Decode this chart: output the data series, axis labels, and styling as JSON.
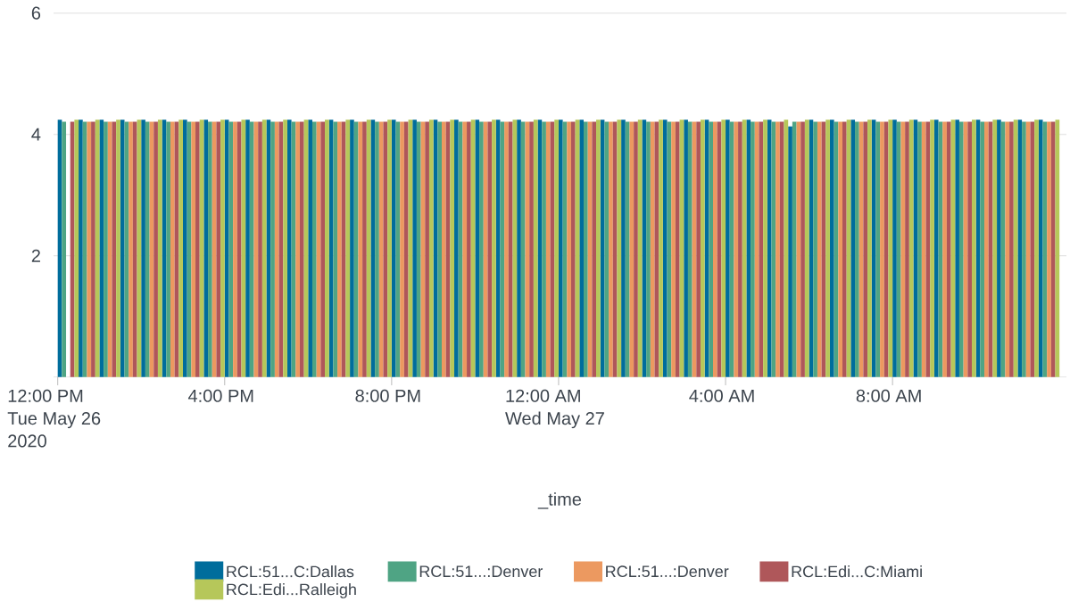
{
  "chart_data": {
    "type": "bar",
    "xlabel": "_time",
    "x": [
      "2020-05-26T12:15",
      "2020-05-26T12:45",
      "2020-05-26T13:15",
      "2020-05-26T13:45",
      "2020-05-26T14:15",
      "2020-05-26T14:45",
      "2020-05-26T15:15",
      "2020-05-26T15:45",
      "2020-05-26T16:15",
      "2020-05-26T16:45",
      "2020-05-26T17:15",
      "2020-05-26T17:45",
      "2020-05-26T18:15",
      "2020-05-26T18:45",
      "2020-05-26T19:15",
      "2020-05-26T19:45",
      "2020-05-26T20:15",
      "2020-05-26T20:45",
      "2020-05-26T21:15",
      "2020-05-26T21:45",
      "2020-05-26T22:15",
      "2020-05-26T22:45",
      "2020-05-26T23:15",
      "2020-05-26T23:45",
      "2020-05-27T00:15",
      "2020-05-27T00:45",
      "2020-05-27T01:15",
      "2020-05-27T01:45",
      "2020-05-27T02:15",
      "2020-05-27T02:45",
      "2020-05-27T03:15",
      "2020-05-27T03:45",
      "2020-05-27T04:15",
      "2020-05-27T04:45",
      "2020-05-27T05:15",
      "2020-05-27T05:45",
      "2020-05-27T06:15",
      "2020-05-27T06:45",
      "2020-05-27T07:15",
      "2020-05-27T07:45",
      "2020-05-27T08:15",
      "2020-05-27T08:45",
      "2020-05-27T09:15",
      "2020-05-27T09:45",
      "2020-05-27T10:15",
      "2020-05-27T10:45",
      "2020-05-27T11:15",
      "2020-05-27T11:45"
    ],
    "series": [
      {
        "name": "RCL:51...C:Dallas",
        "color": "#006d9c",
        "values": [
          4.24,
          4.24,
          4.24,
          4.24,
          4.24,
          4.24,
          4.24,
          4.24,
          4.24,
          4.24,
          4.24,
          4.24,
          4.24,
          4.24,
          4.24,
          4.24,
          4.24,
          4.24,
          4.24,
          4.24,
          4.24,
          4.24,
          4.24,
          4.24,
          4.24,
          4.24,
          4.24,
          4.24,
          4.24,
          4.24,
          4.24,
          4.24,
          4.24,
          4.24,
          4.24,
          4.13,
          4.24,
          4.24,
          4.24,
          4.24,
          4.24,
          4.24,
          4.24,
          4.24,
          4.24,
          4.24,
          4.24,
          4.24
        ]
      },
      {
        "name": "RCL:51...:Denver",
        "color": "#4fa484",
        "values": [
          4.21,
          4.21,
          4.21,
          4.21,
          4.21,
          4.21,
          4.21,
          4.21,
          4.21,
          4.21,
          4.21,
          4.21,
          4.21,
          4.21,
          4.21,
          4.21,
          4.21,
          4.21,
          4.21,
          4.21,
          4.21,
          4.21,
          4.21,
          4.21,
          4.21,
          4.21,
          4.21,
          4.21,
          4.21,
          4.21,
          4.21,
          4.21,
          4.21,
          4.21,
          4.21,
          4.21,
          4.21,
          4.21,
          4.21,
          4.21,
          4.21,
          4.21,
          4.21,
          4.21,
          4.21,
          4.21,
          4.21,
          4.21
        ]
      },
      {
        "name": "RCL:51...:Denver",
        "color": "#ec9960",
        "values": [
          null,
          4.21,
          4.21,
          4.21,
          4.21,
          4.21,
          4.21,
          4.21,
          4.21,
          4.21,
          4.21,
          4.21,
          4.21,
          4.21,
          4.21,
          4.21,
          4.21,
          4.21,
          4.21,
          4.21,
          4.21,
          4.21,
          4.21,
          4.21,
          4.21,
          4.21,
          4.21,
          4.21,
          4.21,
          4.21,
          4.21,
          4.21,
          4.21,
          4.21,
          4.21,
          4.21,
          4.21,
          4.21,
          4.21,
          4.21,
          4.21,
          4.21,
          4.21,
          4.21,
          4.21,
          4.21,
          4.21,
          4.21
        ]
      },
      {
        "name": "RCL:Edi...C:Miami",
        "color": "#af575a",
        "values": [
          4.21,
          4.21,
          4.21,
          4.21,
          4.21,
          4.21,
          4.21,
          4.21,
          4.21,
          4.21,
          4.21,
          4.21,
          4.21,
          4.21,
          4.21,
          4.21,
          4.21,
          4.21,
          4.21,
          4.21,
          4.21,
          4.21,
          4.21,
          4.21,
          4.21,
          4.21,
          4.21,
          4.21,
          4.21,
          4.21,
          4.21,
          4.21,
          4.21,
          4.21,
          4.21,
          4.21,
          4.21,
          4.21,
          4.21,
          4.21,
          4.21,
          4.21,
          4.21,
          4.21,
          4.21,
          4.21,
          4.21,
          4.21
        ]
      },
      {
        "name": "RCL:Edi...Ralleigh",
        "color": "#b6c75a",
        "values": [
          4.24,
          4.24,
          4.24,
          4.24,
          4.24,
          4.24,
          4.24,
          4.24,
          4.24,
          4.24,
          4.24,
          4.24,
          4.24,
          4.24,
          4.24,
          4.24,
          4.24,
          4.24,
          4.24,
          4.24,
          4.24,
          4.24,
          4.24,
          4.24,
          4.24,
          4.24,
          4.24,
          4.24,
          4.24,
          4.24,
          4.24,
          4.24,
          4.24,
          4.24,
          4.24,
          4.24,
          4.24,
          4.24,
          4.24,
          4.24,
          4.24,
          4.24,
          4.24,
          4.24,
          4.24,
          4.24,
          4.24,
          4.24
        ]
      }
    ],
    "xlim": [
      "2020-05-26T11:54",
      "2020-05-27T12:10"
    ],
    "xticks": [
      {
        "value": "2020-05-26T12:00",
        "label": "12:00 PM\nTue May 26\n2020"
      },
      {
        "value": "2020-05-26T16:00",
        "label": "4:00 PM"
      },
      {
        "value": "2020-05-26T20:00",
        "label": "8:00 PM"
      },
      {
        "value": "2020-05-27T00:00",
        "label": "12:00 AM\nWed May 27"
      },
      {
        "value": "2020-05-27T04:00",
        "label": "4:00 AM"
      },
      {
        "value": "2020-05-27T08:00",
        "label": "8:00 AM"
      }
    ],
    "ylim": [
      0,
      6
    ],
    "yticks": [
      2,
      4,
      6
    ],
    "grid": "y",
    "legend": "bottom"
  }
}
